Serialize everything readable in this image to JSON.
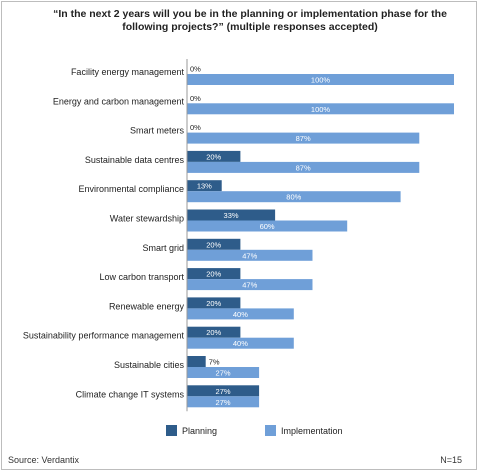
{
  "chart_data": {
    "type": "bar",
    "orientation": "horizontal",
    "title_line1": "“In the next 2 years will you be in the planning or implementation phase for the",
    "title_line2": "following projects?” (multiple responses accepted)",
    "categories": [
      "Facility energy management",
      "Energy and carbon management",
      "Smart meters",
      "Sustainable data centres",
      "Environmental compliance",
      "Water stewardship",
      "Smart grid",
      "Low carbon transport",
      "Renewable energy",
      "Sustainability performance management",
      "Sustainable cities",
      "Climate change IT systems"
    ],
    "series": [
      {
        "name": "Planning",
        "color": "#2e5c8a",
        "values": [
          0,
          0,
          0,
          20,
          13,
          33,
          20,
          20,
          20,
          20,
          7,
          27
        ]
      },
      {
        "name": "Implementation",
        "color": "#6f9fd8",
        "values": [
          100,
          100,
          87,
          87,
          80,
          60,
          47,
          47,
          40,
          40,
          27,
          27
        ]
      }
    ],
    "value_suffix": "%",
    "xlim": [
      0,
      100
    ],
    "legend_position": "bottom",
    "grid": false
  },
  "footer": {
    "source": "Source: Verdantix",
    "sample": "N=15"
  }
}
